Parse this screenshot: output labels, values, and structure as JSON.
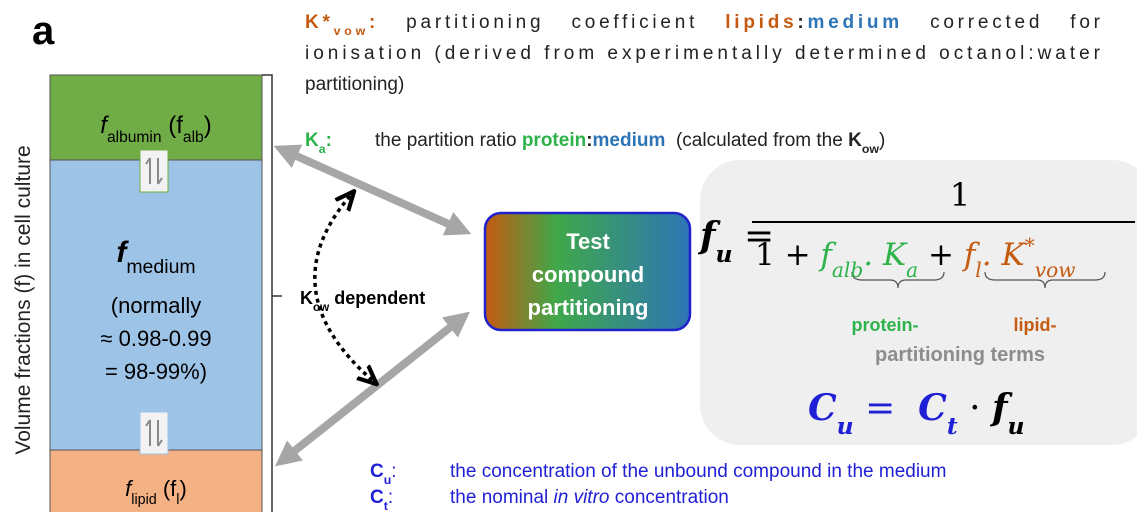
{
  "panel_label": "a",
  "axis_label": "Volume fractions (f) in cell culture",
  "albumin_label": [
    {
      "text": "f",
      "style": "italic"
    },
    {
      "text": "albumin",
      "style": "sub"
    },
    {
      "text": " (f"
    },
    {
      "text": "alb",
      "style": "sub"
    },
    {
      "text": ")"
    }
  ],
  "medium_label": [
    {
      "text": "f",
      "style": "bold italic"
    },
    {
      "text": "medium",
      "style": "sub"
    }
  ],
  "medium_note": [
    "(normally",
    "≈ 0.98-0.99",
    "= 98-99%)"
  ],
  "lipid_label": [
    {
      "text": "f",
      "style": "italic"
    },
    {
      "text": "lipid",
      "style": "sub"
    },
    {
      "text": " (f"
    },
    {
      "text": "l",
      "style": "sub"
    },
    {
      "text": ")"
    }
  ],
  "kvow_definition": [
    [
      {
        "text": "K*",
        "style": "bold",
        "color": "#c55a11"
      },
      {
        "text": "vow",
        "style": "bold sub",
        "color": "#c55a11"
      },
      {
        "text": ":",
        "style": "bold",
        "color": "#c55a11"
      },
      {
        "text": "   partitioning   coefficient   "
      },
      {
        "text": "lipids",
        "style": "bold",
        "color": "#c55a11"
      },
      {
        "text": ":",
        "style": "bold"
      },
      {
        "text": "medium",
        "style": "bold",
        "color": "#2e75b6"
      },
      {
        "text": "   corrected   for"
      }
    ],
    [
      {
        "text": "ionisation (derived from experimentally determined octanol:water"
      }
    ],
    [
      {
        "text": "partitioning)"
      }
    ]
  ],
  "ka_definition": {
    "term": [
      {
        "text": "K",
        "style": "bold",
        "color": "#2db34a"
      },
      {
        "text": "a",
        "style": "bold sub",
        "color": "#2db34a"
      },
      {
        "text": ":",
        "style": "bold",
        "color": "#2db34a"
      }
    ],
    "text": [
      {
        "text": "the partition ratio "
      },
      {
        "text": "protein",
        "style": "bold",
        "color": "#2db34a"
      },
      {
        "text": ":",
        "style": "bold"
      },
      {
        "text": "medium",
        "style": "bold",
        "color": "#2e75b6"
      },
      {
        "text": "  (calculated from the "
      },
      {
        "text": "K",
        "style": "bold"
      },
      {
        "text": "ow",
        "style": "bold sub"
      },
      {
        "text": ")"
      }
    ]
  },
  "center_box": [
    "Test",
    "compound",
    "partitioning"
  ],
  "kow_dependent": [
    {
      "text": "K",
      "style": "bold"
    },
    {
      "text": "ow",
      "style": "bold sub"
    },
    {
      "text": " dependent",
      "style": "bold"
    }
  ],
  "formula": {
    "lhs": [
      {
        "text": "f",
        "style": "bold italic serif"
      },
      {
        "text": "u",
        "style": "bold italic serif sub"
      },
      {
        "text": " =",
        "style": "serif"
      }
    ],
    "numerator": [
      {
        "text": "1",
        "style": "serif"
      }
    ],
    "denominator": [
      {
        "text": "1 + ",
        "style": "serif"
      },
      {
        "text": "f",
        "style": "italic serif",
        "color": "#2db34a"
      },
      {
        "text": "alb",
        "style": "italic serif sub",
        "color": "#2db34a"
      },
      {
        "text": ". K",
        "style": "italic serif",
        "color": "#2db34a"
      },
      {
        "text": "a",
        "style": "italic serif sub",
        "color": "#2db34a"
      },
      {
        "text": " + ",
        "style": "serif"
      },
      {
        "text": "f",
        "style": "italic serif",
        "color": "#c55a11"
      },
      {
        "text": "l",
        "style": "italic serif sub",
        "color": "#c55a11"
      },
      {
        "text": ". K",
        "style": "italic serif",
        "color": "#c55a11"
      },
      {
        "text": "*",
        "style": "italic serif sup",
        "color": "#c55a11"
      },
      {
        "text": "vow",
        "style": "italic serif sub",
        "color": "#c55a11"
      }
    ]
  },
  "term_labels": {
    "protein": [
      {
        "text": "protein-",
        "style": "bold",
        "color": "#2db34a"
      }
    ],
    "lipid": [
      {
        "text": "lipid-",
        "style": "bold",
        "color": "#c55a11"
      }
    ],
    "common": [
      {
        "text": "partitioning terms",
        "style": "bold",
        "color": "#8c8c8c"
      }
    ]
  },
  "cu_equation": [
    {
      "text": "C",
      "style": "bold italic serif",
      "color": "#1f1fd6"
    },
    {
      "text": "u",
      "style": "bold italic serif sub",
      "color": "#1f1fd6"
    },
    {
      "text": " =  ",
      "style": "serif",
      "color": "#1f1fd6"
    },
    {
      "text": "C",
      "style": "bold italic serif",
      "color": "#1f1fd6"
    },
    {
      "text": "t",
      "style": "bold italic serif sub",
      "color": "#1f1fd6"
    },
    {
      "text": " · ",
      "style": "serif"
    },
    {
      "text": "f",
      "style": "bold italic serif"
    },
    {
      "text": "u",
      "style": "bold italic serif sub"
    }
  ],
  "footnotes": [
    {
      "term": [
        {
          "text": "C",
          "style": "bold",
          "color": "#1f1fd6"
        },
        {
          "text": "u",
          "style": "bold sub",
          "color": "#1f1fd6"
        },
        {
          "text": ":",
          "color": "#1f1fd6"
        }
      ],
      "text": [
        {
          "text": "the concentration of the unbound compound in the medium",
          "color": "#1f1fd6"
        }
      ]
    },
    {
      "term": [
        {
          "text": "C",
          "style": "bold",
          "color": "#1f1fd6"
        },
        {
          "text": "t",
          "style": "bold sub",
          "color": "#1f1fd6"
        },
        {
          "text": ":",
          "color": "#1f1fd6"
        }
      ],
      "text": [
        {
          "text": "the nominal ",
          "color": "#1f1fd6"
        },
        {
          "text": "in vitro",
          "style": "italic",
          "color": "#1f1fd6"
        },
        {
          "text": " concentration",
          "color": "#1f1fd6"
        }
      ]
    }
  ]
}
